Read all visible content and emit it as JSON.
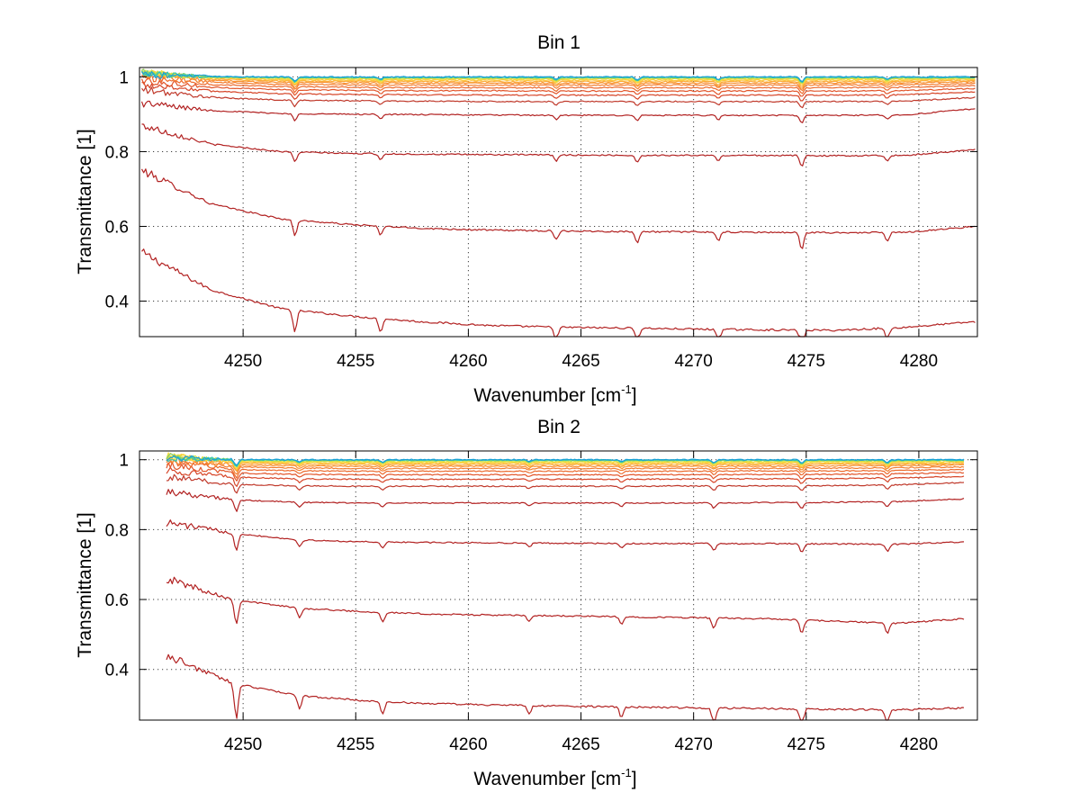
{
  "chart_data": [
    {
      "type": "line",
      "title": "Bin 1",
      "xlabel": "Wavenumber [cm",
      "xlabel_sup": "-1",
      "xlabel_end": "]",
      "ylabel": "Transmittance [1]",
      "xlim": [
        4245.4,
        4282.6
      ],
      "ylim": [
        0.305,
        1.025
      ],
      "xticks": [
        "4250",
        "4255",
        "4260",
        "4265",
        "4270",
        "4275",
        "4280"
      ],
      "yticks": [
        "0.4",
        "0.6",
        "0.8",
        "1"
      ],
      "grid": true,
      "x_start": 4245.5,
      "x_end": 4282.5,
      "dips": [
        {
          "x": 4252.3,
          "strength": 1.0
        },
        {
          "x": 4256.1,
          "strength": 0.6
        },
        {
          "x": 4263.9,
          "strength": 0.6
        },
        {
          "x": 4267.5,
          "strength": 0.7
        },
        {
          "x": 4271.1,
          "strength": 0.6
        },
        {
          "x": 4274.8,
          "strength": 1.1
        },
        {
          "x": 4278.6,
          "strength": 0.6
        }
      ],
      "series": [
        {
          "color": "#b22222",
          "values": [
            0.53,
            0.43,
            0.38,
            0.36,
            0.345,
            0.335,
            0.33,
            0.328,
            0.325,
            0.323,
            0.322,
            0.33,
            0.345
          ]
        },
        {
          "color": "#b22222",
          "values": [
            0.75,
            0.66,
            0.62,
            0.605,
            0.595,
            0.59,
            0.588,
            0.586,
            0.585,
            0.584,
            0.583,
            0.584,
            0.6
          ]
        },
        {
          "color": "#b22222",
          "values": [
            0.87,
            0.82,
            0.8,
            0.795,
            0.793,
            0.792,
            0.791,
            0.79,
            0.79,
            0.79,
            0.789,
            0.79,
            0.805
          ]
        },
        {
          "color": "#b22222",
          "values": [
            0.93,
            0.91,
            0.902,
            0.9,
            0.899,
            0.898,
            0.897,
            0.897,
            0.897,
            0.897,
            0.897,
            0.898,
            0.915
          ]
        },
        {
          "color": "#c0392b",
          "values": [
            0.965,
            0.945,
            0.938,
            0.936,
            0.935,
            0.934,
            0.934,
            0.934,
            0.934,
            0.934,
            0.934,
            0.935,
            0.945
          ]
        },
        {
          "color": "#d64528",
          "values": [
            0.98,
            0.962,
            0.955,
            0.953,
            0.952,
            0.951,
            0.951,
            0.951,
            0.951,
            0.951,
            0.951,
            0.952,
            0.96
          ]
        },
        {
          "color": "#e2552a",
          "values": [
            0.99,
            0.972,
            0.966,
            0.964,
            0.963,
            0.963,
            0.962,
            0.962,
            0.962,
            0.962,
            0.962,
            0.963,
            0.969
          ]
        },
        {
          "color": "#ec6a2d",
          "values": [
            1.0,
            0.98,
            0.974,
            0.972,
            0.971,
            0.971,
            0.971,
            0.971,
            0.971,
            0.971,
            0.971,
            0.972,
            0.976
          ]
        },
        {
          "color": "#f37e2f",
          "values": [
            1.005,
            0.986,
            0.98,
            0.979,
            0.978,
            0.978,
            0.978,
            0.978,
            0.978,
            0.978,
            0.978,
            0.979,
            0.982
          ]
        },
        {
          "color": "#f89132",
          "values": [
            1.01,
            0.99,
            0.985,
            0.984,
            0.983,
            0.983,
            0.983,
            0.983,
            0.983,
            0.983,
            0.983,
            0.984,
            0.987
          ]
        },
        {
          "color": "#fbaa36",
          "values": [
            1.01,
            0.994,
            0.989,
            0.988,
            0.987,
            0.987,
            0.987,
            0.987,
            0.987,
            0.987,
            0.987,
            0.988,
            0.99
          ]
        },
        {
          "color": "#fcc43a",
          "values": [
            1.012,
            0.996,
            0.992,
            0.991,
            0.991,
            0.991,
            0.991,
            0.991,
            0.991,
            0.991,
            0.991,
            0.991,
            0.993
          ]
        },
        {
          "color": "#f6dc3c",
          "values": [
            1.012,
            0.998,
            0.995,
            0.994,
            0.994,
            0.994,
            0.994,
            0.994,
            0.994,
            0.994,
            0.994,
            0.994,
            0.995
          ]
        },
        {
          "color": "#cde04a",
          "values": [
            1.01,
            0.999,
            0.997,
            0.996,
            0.996,
            0.996,
            0.996,
            0.996,
            0.996,
            0.996,
            0.996,
            0.996,
            0.997
          ]
        },
        {
          "color": "#7fd06e",
          "values": [
            1.01,
            1.0,
            0.998,
            0.998,
            0.998,
            0.998,
            0.998,
            0.998,
            0.998,
            0.998,
            0.998,
            0.998,
            0.998
          ]
        },
        {
          "color": "#2fc4b4",
          "values": [
            1.008,
            1.0,
            0.999,
            0.999,
            0.999,
            0.999,
            0.999,
            0.999,
            0.999,
            0.999,
            0.999,
            0.999,
            0.999
          ]
        },
        {
          "color": "#1aa0d8",
          "values": [
            1.005,
            1.001,
            1.0,
            1.0,
            1.0,
            1.0,
            1.0,
            1.0,
            1.0,
            1.0,
            1.0,
            1.0,
            1.0
          ]
        }
      ]
    },
    {
      "type": "line",
      "title": "Bin 2",
      "xlabel": "Wavenumber [cm",
      "xlabel_sup": "-1",
      "xlabel_end": "]",
      "ylabel": "Transmittance [1]",
      "xlim": [
        4245.4,
        4282.6
      ],
      "ylim": [
        0.255,
        1.025
      ],
      "xticks": [
        "4250",
        "4255",
        "4260",
        "4265",
        "4270",
        "4275",
        "4280"
      ],
      "yticks": [
        "0.4",
        "0.6",
        "0.8",
        "1"
      ],
      "grid": true,
      "x_start": 4246.6,
      "x_end": 4282.0,
      "dips": [
        {
          "x": 4249.7,
          "strength": 1.6
        },
        {
          "x": 4252.5,
          "strength": 0.6
        },
        {
          "x": 4256.2,
          "strength": 0.6
        },
        {
          "x": 4262.7,
          "strength": 0.4
        },
        {
          "x": 4266.8,
          "strength": 0.5
        },
        {
          "x": 4270.9,
          "strength": 0.7
        },
        {
          "x": 4274.8,
          "strength": 0.9
        },
        {
          "x": 4278.6,
          "strength": 0.7
        }
      ],
      "series": [
        {
          "color": "#b22222",
          "values": [
            0.44,
            0.36,
            0.325,
            0.31,
            0.302,
            0.298,
            0.295,
            0.292,
            0.29,
            0.288,
            0.286,
            0.284,
            0.29
          ]
        },
        {
          "color": "#b22222",
          "values": [
            0.66,
            0.6,
            0.575,
            0.565,
            0.558,
            0.555,
            0.553,
            0.55,
            0.548,
            0.545,
            0.538,
            0.532,
            0.545
          ]
        },
        {
          "color": "#b22222",
          "values": [
            0.82,
            0.79,
            0.77,
            0.765,
            0.763,
            0.762,
            0.761,
            0.76,
            0.76,
            0.76,
            0.759,
            0.758,
            0.765
          ]
        },
        {
          "color": "#b22222",
          "values": [
            0.91,
            0.885,
            0.878,
            0.876,
            0.876,
            0.876,
            0.876,
            0.876,
            0.876,
            0.877,
            0.878,
            0.88,
            0.888
          ]
        },
        {
          "color": "#c0392b",
          "values": [
            0.95,
            0.93,
            0.925,
            0.924,
            0.924,
            0.924,
            0.924,
            0.924,
            0.925,
            0.925,
            0.926,
            0.928,
            0.935
          ]
        },
        {
          "color": "#d64528",
          "values": [
            0.97,
            0.95,
            0.945,
            0.944,
            0.944,
            0.944,
            0.944,
            0.944,
            0.945,
            0.945,
            0.946,
            0.948,
            0.952
          ]
        },
        {
          "color": "#e2552a",
          "values": [
            0.985,
            0.962,
            0.958,
            0.957,
            0.957,
            0.957,
            0.957,
            0.957,
            0.957,
            0.958,
            0.958,
            0.96,
            0.963
          ]
        },
        {
          "color": "#ec6a2d",
          "values": [
            0.995,
            0.972,
            0.968,
            0.967,
            0.967,
            0.967,
            0.967,
            0.967,
            0.967,
            0.968,
            0.968,
            0.969,
            0.972
          ]
        },
        {
          "color": "#f37e2f",
          "values": [
            1.0,
            0.98,
            0.976,
            0.975,
            0.975,
            0.975,
            0.975,
            0.975,
            0.975,
            0.975,
            0.976,
            0.977,
            0.979
          ]
        },
        {
          "color": "#f89132",
          "values": [
            1.005,
            0.986,
            0.982,
            0.981,
            0.981,
            0.981,
            0.981,
            0.981,
            0.981,
            0.981,
            0.982,
            0.983,
            0.985
          ]
        },
        {
          "color": "#fbaa36",
          "values": [
            1.008,
            0.99,
            0.987,
            0.986,
            0.986,
            0.986,
            0.986,
            0.986,
            0.986,
            0.986,
            0.987,
            0.987,
            0.989
          ]
        },
        {
          "color": "#fcc43a",
          "values": [
            1.01,
            0.994,
            0.991,
            0.99,
            0.99,
            0.99,
            0.99,
            0.99,
            0.99,
            0.99,
            0.991,
            0.991,
            0.992
          ]
        },
        {
          "color": "#f6dc3c",
          "values": [
            1.01,
            0.996,
            0.994,
            0.993,
            0.993,
            0.993,
            0.993,
            0.993,
            0.993,
            0.993,
            0.994,
            0.994,
            0.995
          ]
        },
        {
          "color": "#cde04a",
          "values": [
            1.01,
            0.998,
            0.996,
            0.996,
            0.996,
            0.996,
            0.996,
            0.996,
            0.996,
            0.996,
            0.996,
            0.996,
            0.997
          ]
        },
        {
          "color": "#7fd06e",
          "values": [
            1.008,
            0.999,
            0.998,
            0.998,
            0.998,
            0.998,
            0.998,
            0.998,
            0.998,
            0.998,
            0.998,
            0.998,
            0.998
          ]
        },
        {
          "color": "#2fc4b4",
          "values": [
            1.006,
            1.0,
            0.999,
            0.999,
            0.999,
            0.999,
            0.999,
            0.999,
            0.999,
            0.999,
            0.999,
            0.999,
            0.999
          ]
        },
        {
          "color": "#1aa0d8",
          "values": [
            1.004,
            1.001,
            1.0,
            1.0,
            1.0,
            1.0,
            1.0,
            1.0,
            1.0,
            1.0,
            1.0,
            1.0,
            1.0
          ]
        }
      ]
    }
  ]
}
